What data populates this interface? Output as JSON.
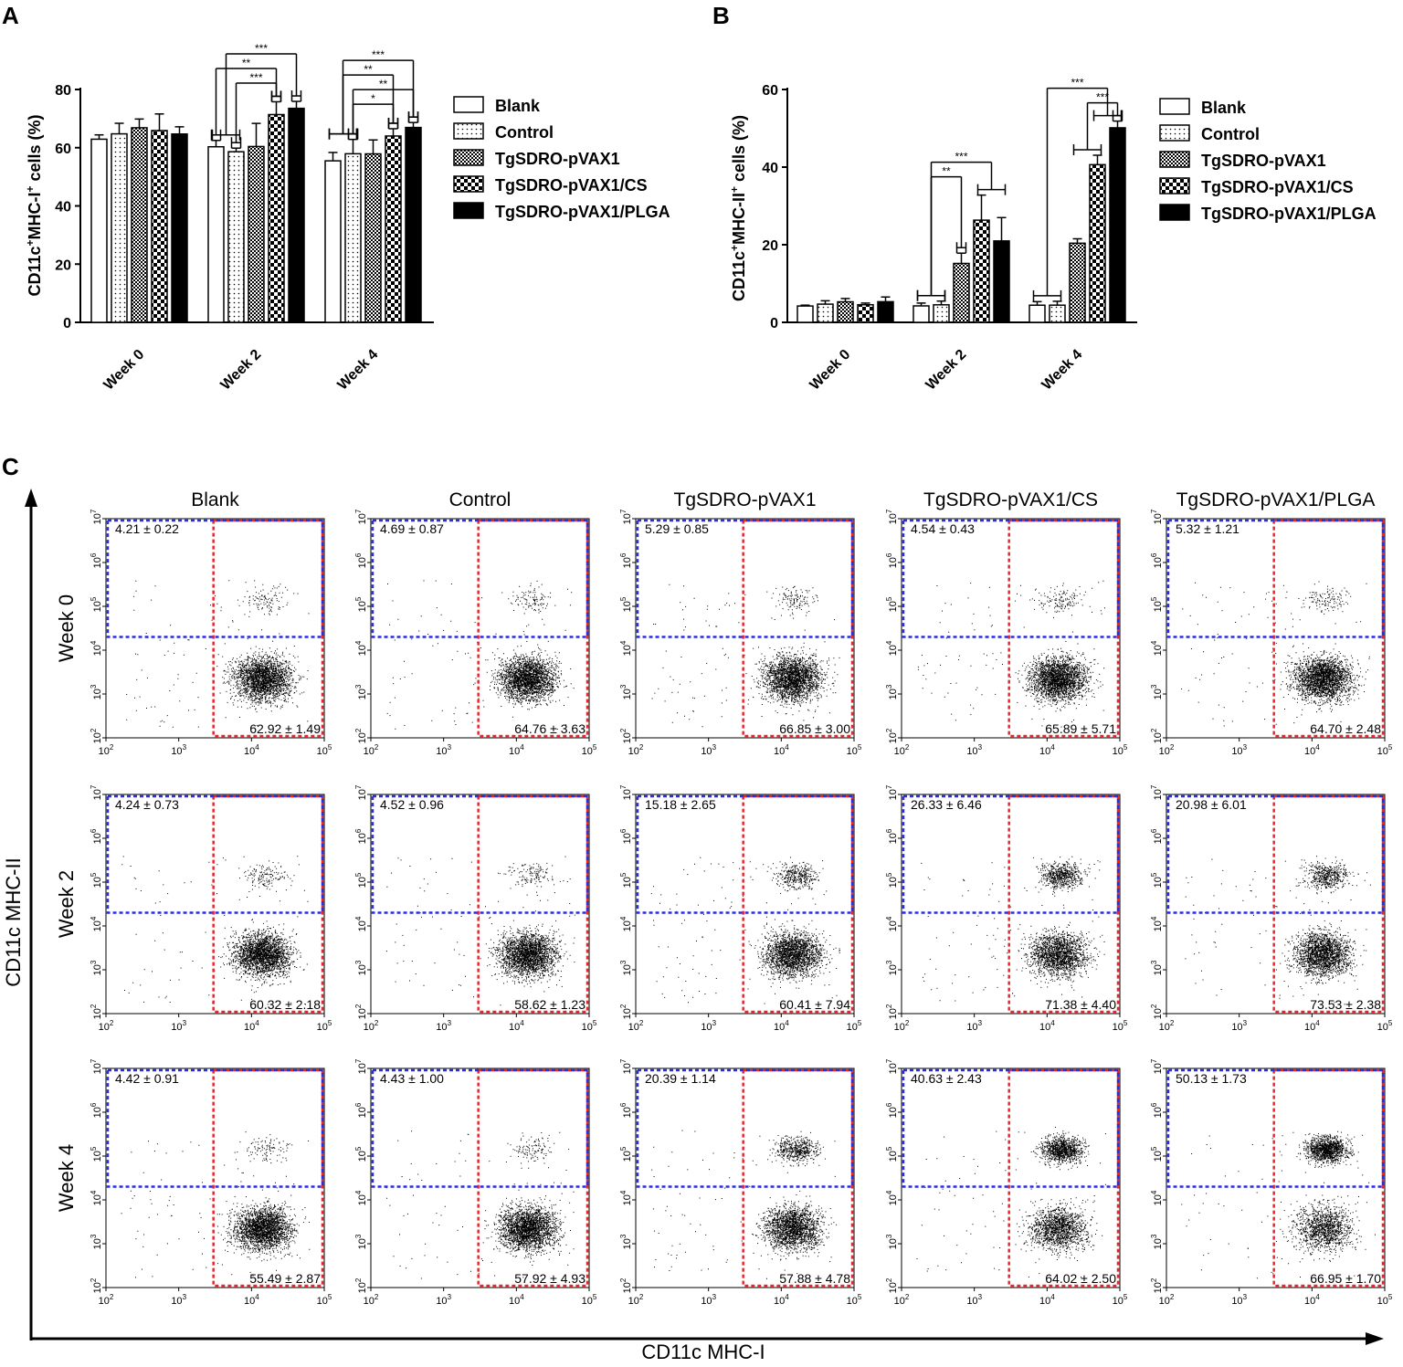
{
  "panels": {
    "a": "A",
    "b": "B",
    "c": "C"
  },
  "legend": {
    "entries": [
      "Blank",
      "Control",
      "TgSDRO-pVAX1",
      "TgSDRO-pVAX1/CS",
      "TgSDRO-pVAX1/PLGA"
    ],
    "patterns": [
      "open",
      "dots",
      "checker",
      "big-checker",
      "solid"
    ]
  },
  "chart_data": [
    {
      "type": "bar",
      "panel": "A",
      "ylabel_main": "CD11c",
      "ylabel_sup1": "+",
      "ylabel_mid": "MHC-I",
      "ylabel_sup2": "+",
      "ylabel_tail": " cells (%)",
      "ylim": [
        0,
        80
      ],
      "yticks": [
        0,
        20,
        40,
        60,
        80
      ],
      "categories": [
        "Week 0",
        "Week 2",
        "Week 4"
      ],
      "series": [
        {
          "name": "Blank",
          "values": [
            62.92,
            60.32,
            55.49
          ],
          "errors": [
            1.49,
            2.18,
            2.87
          ]
        },
        {
          "name": "Control",
          "values": [
            64.76,
            58.62,
            57.92
          ],
          "errors": [
            3.63,
            1.23,
            4.93
          ]
        },
        {
          "name": "TgSDRO-pVAX1",
          "values": [
            66.85,
            60.41,
            57.88
          ],
          "errors": [
            3.0,
            7.94,
            4.78
          ]
        },
        {
          "name": "TgSDRO-pVAX1/CS",
          "values": [
            65.89,
            71.38,
            64.02
          ],
          "errors": [
            5.71,
            4.4,
            2.5
          ]
        },
        {
          "name": "TgSDRO-pVAX1/PLGA",
          "values": [
            64.7,
            73.53,
            66.95
          ],
          "errors": [
            2.48,
            2.38,
            1.7
          ]
        }
      ],
      "significance": [
        {
          "category": 1,
          "from": [
            0,
            1
          ],
          "to": 4,
          "label": "***",
          "level": 3
        },
        {
          "category": 1,
          "from": [
            0
          ],
          "to": 3,
          "label": "**",
          "level": 2
        },
        {
          "category": 1,
          "from": [
            1
          ],
          "to": 3,
          "label": "***",
          "level": 1
        },
        {
          "category": 2,
          "from": [
            0,
            1
          ],
          "to": 4,
          "label": "***",
          "level": 4
        },
        {
          "category": 2,
          "from": [
            0,
            1
          ],
          "to": 3,
          "label": "**",
          "level": 3
        },
        {
          "category": 2,
          "from": [
            1
          ],
          "to": 4,
          "label": "**",
          "level": 2
        },
        {
          "category": 2,
          "from": [
            1
          ],
          "to": 3,
          "label": "*",
          "level": 1
        }
      ]
    },
    {
      "type": "bar",
      "panel": "B",
      "ylabel_main": "CD11c",
      "ylabel_sup1": "+",
      "ylabel_mid": "MHC-II",
      "ylabel_sup2": "+",
      "ylabel_tail": " cells (%)",
      "ylim": [
        0,
        60
      ],
      "yticks": [
        0,
        20,
        40,
        60
      ],
      "categories": [
        "Week 0",
        "Week 2",
        "Week 4"
      ],
      "series": [
        {
          "name": "Blank",
          "values": [
            4.21,
            4.24,
            4.42
          ],
          "errors": [
            0.22,
            0.73,
            0.91
          ]
        },
        {
          "name": "Control",
          "values": [
            4.69,
            4.52,
            4.43
          ],
          "errors": [
            0.87,
            0.96,
            1.0
          ]
        },
        {
          "name": "TgSDRO-pVAX1",
          "values": [
            5.29,
            15.18,
            20.39
          ],
          "errors": [
            0.85,
            2.65,
            1.14
          ]
        },
        {
          "name": "TgSDRO-pVAX1/CS",
          "values": [
            4.54,
            26.33,
            40.63
          ],
          "errors": [
            0.43,
            6.46,
            2.43
          ]
        },
        {
          "name": "TgSDRO-pVAX1/PLGA",
          "values": [
            5.32,
            20.98,
            50.13
          ],
          "errors": [
            1.21,
            6.01,
            1.73
          ]
        }
      ],
      "significance": [
        {
          "category": 1,
          "from": [
            0,
            1
          ],
          "to": [
            3,
            4
          ],
          "label": "***",
          "level": 2
        },
        {
          "category": 1,
          "from": [
            0,
            1
          ],
          "to": [
            2
          ],
          "label": "**",
          "level": 1
        },
        {
          "category": 2,
          "from": [
            0,
            1
          ],
          "to": [
            3,
            4
          ],
          "label": "***",
          "level": 2
        },
        {
          "category": 2,
          "from": [
            2,
            3
          ],
          "to": [
            4
          ],
          "label": "***",
          "level": 1
        }
      ]
    },
    {
      "type": "scatter",
      "panel": "C",
      "xlabel": "CD11c MHC-I",
      "ylabel": "CD11c MHC-II",
      "columns": [
        "Blank",
        "Control",
        "TgSDRO-pVAX1",
        "TgSDRO-pVAX1/CS",
        "TgSDRO-pVAX1/PLGA"
      ],
      "rows": [
        "Week 0",
        "Week 2",
        "Week 4"
      ],
      "x_axis": {
        "scale": "log",
        "range": [
          100,
          100000
        ],
        "ticks": [
          "10",
          "10",
          "10",
          "10"
        ],
        "exponents": [
          "2",
          "3",
          "4",
          "5"
        ]
      },
      "y_axis": {
        "scale": "log",
        "range": [
          100,
          10000000
        ],
        "ticks": [
          "10",
          "10",
          "10",
          "10",
          "10",
          "10"
        ],
        "exponents": [
          "2",
          "3",
          "4",
          "5",
          "6",
          "7"
        ]
      },
      "gates": {
        "mhc_i_threshold": 3000,
        "mhc_ii_threshold": 20000
      },
      "mhc_ii_labels": [
        [
          "4.21 ± 0.22",
          "4.69 ± 0.87",
          "5.29 ± 0.85",
          "4.54 ± 0.43",
          "5.32 ± 1.21"
        ],
        [
          "4.24 ± 0.73",
          "4.52 ± 0.96",
          "15.18 ± 2.65",
          "26.33 ± 6.46",
          "20.98 ± 6.01"
        ],
        [
          "4.42 ± 0.91",
          "4.43 ± 1.00",
          "20.39 ± 1.14",
          "40.63 ± 2.43",
          "50.13 ± 1.73"
        ]
      ],
      "mhc_i_labels": [
        [
          "62.92 ± 1.49",
          "64.76 ± 3.63",
          "66.85 ± 3.00",
          "65.89 ± 5.71",
          "64.70 ± 2.48"
        ],
        [
          "60.32 ± 2.18",
          "58.62 ± 1.23",
          "60.41 ± 7.94",
          "71.38 ± 4.40",
          "73.53 ± 2.38"
        ],
        [
          "55.49 ± 2.87",
          "57.92 ± 4.93",
          "57.88 ± 4.78",
          "64.02 ± 2.50",
          "66.95 ± 1.70"
        ]
      ],
      "mhc_ii_percent": [
        [
          4.21,
          4.69,
          5.29,
          4.54,
          5.32
        ],
        [
          4.24,
          4.52,
          15.18,
          26.33,
          20.98
        ],
        [
          4.42,
          4.43,
          20.39,
          40.63,
          50.13
        ]
      ],
      "mhc_i_percent": [
        [
          62.92,
          64.76,
          66.85,
          65.89,
          64.7
        ],
        [
          60.32,
          58.62,
          60.41,
          71.38,
          73.53
        ],
        [
          55.49,
          57.92,
          57.88,
          64.02,
          66.95
        ]
      ]
    }
  ]
}
